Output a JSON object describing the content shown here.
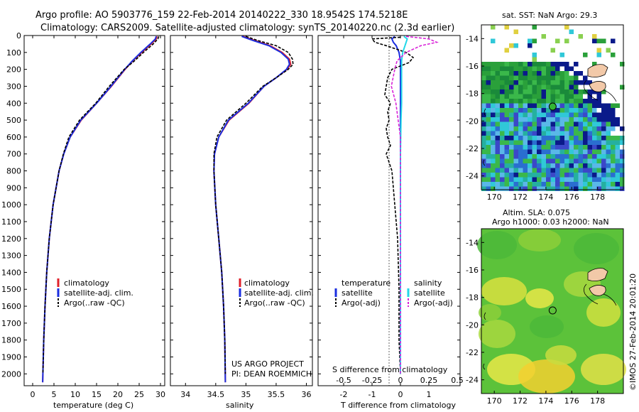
{
  "header": {
    "line1": "Argo profile: AO 5903776_159 22-Feb-2014 20140222_330 18.9542S 174.5218E",
    "line2": "Climatology: CARS2009. Satellite-adjusted climatology: synTS_20140220.nc (2.3d earlier)"
  },
  "colors": {
    "climatology": "#e0202a",
    "satellite": "#1a2ee0",
    "argo": "#000000",
    "salinity_sat": "#22d8e8",
    "salinity_argo": "#d822d8",
    "ocean_deep": "#0a1a8a",
    "land": "#f2c9a8"
  },
  "chart_data": [
    {
      "type": "line",
      "name": "temperature",
      "xlabel": "temperature (deg C)",
      "ylabel": "",
      "xlim": [
        -2,
        31
      ],
      "ylim": [
        2070,
        0
      ],
      "xticks": [
        0,
        5,
        10,
        15,
        20,
        25,
        30
      ],
      "yticks": [
        0,
        100,
        200,
        300,
        400,
        500,
        600,
        700,
        800,
        900,
        1000,
        1100,
        1200,
        1300,
        1400,
        1500,
        1600,
        1700,
        1800,
        1900,
        2000
      ],
      "legend": [
        "climatology",
        "satellite-adj. clim.",
        "Argo(..raw -QC)"
      ],
      "series": [
        {
          "name": "climatology",
          "depth": [
            5,
            20,
            50,
            100,
            150,
            200,
            300,
            400,
            500,
            600,
            700,
            800,
            1000,
            1200,
            1400,
            1600,
            1800,
            2000,
            2050
          ],
          "values": [
            29.2,
            29.0,
            27.8,
            25.6,
            23.5,
            21.7,
            18.5,
            15.0,
            11.4,
            8.8,
            7.3,
            6.2,
            4.8,
            3.9,
            3.3,
            2.9,
            2.6,
            2.4,
            2.35
          ]
        },
        {
          "name": "satellite-adj. clim.",
          "depth": [
            5,
            20,
            50,
            100,
            150,
            200,
            300,
            400,
            500,
            600,
            700,
            800,
            1000,
            1200,
            1400,
            1600,
            1800,
            2000,
            2050
          ],
          "values": [
            29.0,
            28.8,
            27.6,
            25.4,
            23.4,
            21.6,
            18.4,
            15.0,
            11.3,
            8.8,
            7.3,
            6.2,
            4.8,
            3.9,
            3.3,
            2.9,
            2.6,
            2.4,
            2.35
          ]
        },
        {
          "name": "Argo(..raw -QC)",
          "depth": [
            5,
            20,
            50,
            100,
            150,
            200,
            300,
            400,
            500,
            600,
            700,
            800,
            1000,
            1200,
            1400,
            1600,
            1800,
            2000
          ],
          "values": [
            29.6,
            29.4,
            28.3,
            26.0,
            23.9,
            21.5,
            18.0,
            14.8,
            11.0,
            8.5,
            7.2,
            6.2,
            4.8,
            3.9,
            3.3,
            2.9,
            2.6,
            2.4
          ]
        }
      ]
    },
    {
      "type": "line",
      "name": "salinity",
      "xlabel": "salinity",
      "xlim": [
        33.75,
        36.1
      ],
      "ylim": [
        2070,
        0
      ],
      "xticks": [
        34,
        34.5,
        35,
        35.5,
        36
      ],
      "legend": [
        "climatology",
        "satellite-adj. clim.",
        "Argo(..raw -QC)"
      ],
      "series": [
        {
          "name": "climatology",
          "depth": [
            5,
            30,
            60,
            100,
            140,
            170,
            200,
            250,
            300,
            400,
            500,
            600,
            700,
            800,
            1000,
            1200,
            1400,
            1600,
            1800,
            2050
          ],
          "values": [
            34.95,
            35.15,
            35.4,
            35.6,
            35.72,
            35.74,
            35.68,
            35.5,
            35.3,
            35.05,
            34.72,
            34.55,
            34.48,
            34.47,
            34.5,
            34.55,
            34.6,
            34.63,
            34.65,
            34.66
          ]
        },
        {
          "name": "satellite-adj. clim.",
          "depth": [
            5,
            30,
            60,
            100,
            140,
            170,
            200,
            250,
            300,
            400,
            500,
            600,
            700,
            800,
            1000,
            1200,
            1400,
            1600,
            1800,
            2050
          ],
          "values": [
            34.93,
            35.12,
            35.38,
            35.58,
            35.7,
            35.72,
            35.67,
            35.5,
            35.3,
            35.04,
            34.71,
            34.55,
            34.48,
            34.47,
            34.5,
            34.55,
            34.6,
            34.63,
            34.65,
            34.66
          ]
        },
        {
          "name": "Argo(..raw -QC)",
          "depth": [
            5,
            30,
            60,
            100,
            140,
            170,
            200,
            250,
            300,
            400,
            500,
            600,
            700,
            800,
            1000,
            1200,
            1400,
            1600,
            1800,
            2000
          ],
          "values": [
            35.0,
            35.2,
            35.5,
            35.7,
            35.77,
            35.78,
            35.7,
            35.5,
            35.28,
            35.0,
            34.68,
            34.52,
            34.47,
            34.47,
            34.5,
            34.55,
            34.6,
            34.63,
            34.65,
            34.66
          ]
        }
      ]
    },
    {
      "type": "line",
      "name": "difference",
      "xlabel": "T difference from climatology",
      "xlim": [
        -2.9,
        2.1
      ],
      "ylim": [
        2070,
        0
      ],
      "xticks": [
        -2,
        -1,
        0,
        1
      ],
      "xtick_labels": [
        "-2",
        "-1",
        "0",
        "1"
      ],
      "top_axis_label": "S difference from climatology",
      "top_ticks": [
        -0.5,
        -0.25,
        0,
        0.25,
        0.5
      ],
      "top_tick_labels": [
        "-0.5",
        "-0.25",
        "0",
        "0.25",
        "0.5"
      ],
      "top_scale": 0.25,
      "legend_left_title": "temperature",
      "legend_right_title": "salinity",
      "legend": [
        "satellite",
        "Argo(-adj)",
        "satellite",
        "Argo(-adj)"
      ],
      "series": [
        {
          "name": "temperature satellite",
          "depth": [
            5,
            20,
            40,
            60,
            80,
            100,
            150,
            200,
            300,
            400,
            500,
            700,
            1000,
            1500,
            2000
          ],
          "values": [
            -0.2,
            -0.3,
            -0.25,
            -0.15,
            -0.1,
            -0.05,
            0.0,
            0.0,
            0.0,
            0.0,
            0.0,
            0.0,
            0.0,
            0.0,
            0.0
          ]
        },
        {
          "name": "temperature Argo(-adj)",
          "depth": [
            10,
            20,
            40,
            60,
            100,
            130,
            160,
            200,
            250,
            300,
            350,
            400,
            450,
            500,
            550,
            600,
            650,
            700,
            800,
            1000,
            1200,
            1500,
            1800,
            2000
          ],
          "values": [
            0.0,
            -1.0,
            -0.9,
            -0.5,
            0.2,
            0.45,
            0.3,
            -0.3,
            -0.45,
            -0.5,
            -0.55,
            -0.35,
            -0.45,
            -0.4,
            -0.5,
            -0.45,
            -0.35,
            -0.5,
            -0.3,
            -0.2,
            -0.1,
            -0.05,
            -0.05,
            0.0
          ]
        },
        {
          "name": "salinity satellite",
          "depth": [
            5,
            20,
            40,
            60,
            80,
            100,
            150,
            200,
            300,
            400,
            500,
            700,
            1000,
            2000
          ],
          "values": [
            0.03,
            0.06,
            0.05,
            0.04,
            0.03,
            0.02,
            0.01,
            0.01,
            0.01,
            0.01,
            0.005,
            0.0,
            0.0,
            0.0
          ]
        },
        {
          "name": "salinity Argo(-adj)",
          "depth": [
            5,
            20,
            40,
            60,
            100,
            150,
            200,
            300,
            400,
            500,
            600,
            800,
            1000,
            1500,
            2000
          ],
          "values": [
            0.05,
            0.25,
            0.32,
            0.18,
            0.05,
            -0.03,
            -0.05,
            -0.08,
            -0.04,
            -0.02,
            0.0,
            0.0,
            0.0,
            0.0,
            0.0
          ]
        }
      ]
    },
    {
      "type": "heatmap",
      "name": "sst",
      "title": "sat. SST: NaN Argo: 29.3",
      "xlim": [
        169,
        180
      ],
      "ylim": [
        -25,
        -13
      ],
      "xticks": [
        170,
        172,
        174,
        176,
        178
      ],
      "yticks": [
        -14,
        -16,
        -18,
        -20,
        -22,
        -24
      ],
      "marker": {
        "lon": 174.52,
        "lat": -18.95
      }
    },
    {
      "type": "heatmap",
      "name": "sla",
      "title_line1": "Altim. SLA: 0.075",
      "title_line2": "Argo h1000: 0.03 h2000: NaN",
      "xlim": [
        169,
        180
      ],
      "ylim": [
        -25,
        -13
      ],
      "xticks": [
        170,
        172,
        174,
        176,
        178
      ],
      "yticks": [
        -14,
        -16,
        -18,
        -20,
        -22,
        -24
      ],
      "marker": {
        "lon": 174.52,
        "lat": -18.95
      }
    }
  ],
  "notes": {
    "project_line1": "US ARGO PROJECT",
    "project_line2": "PI: DEAN ROEMMICH",
    "imos_stamp": "©IMOS 27-Feb-2014 20:01:20"
  }
}
